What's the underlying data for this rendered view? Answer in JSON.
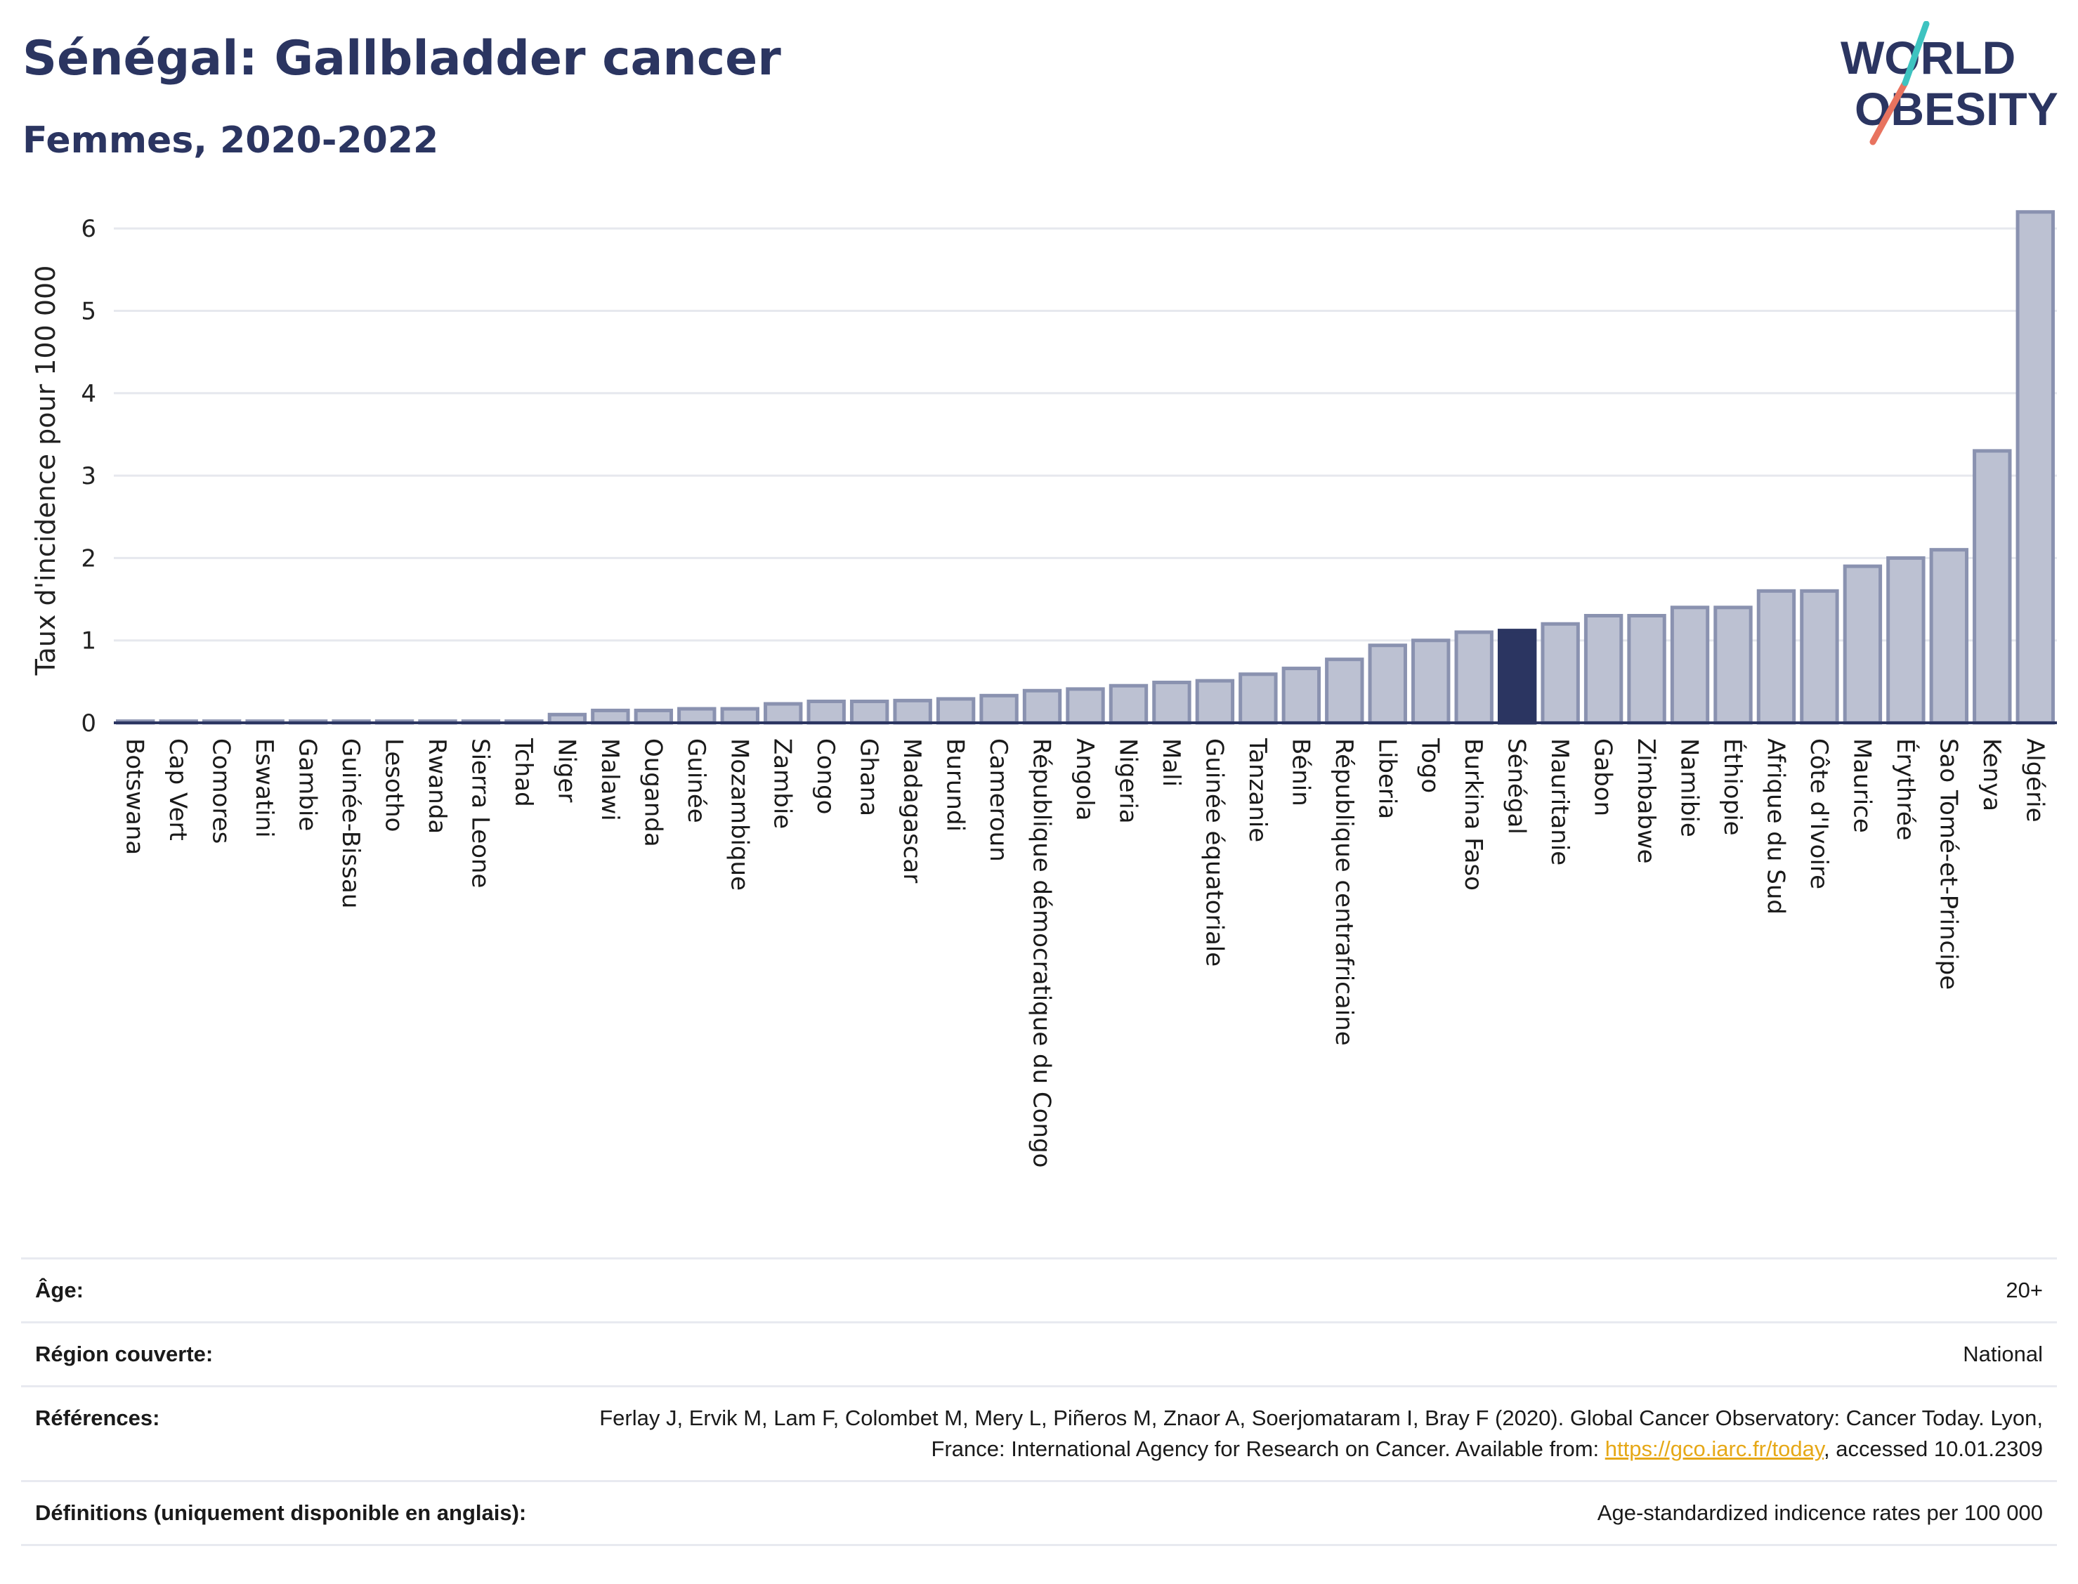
{
  "header": {
    "title": "Sénégal: Gallbladder cancer",
    "subtitle": "Femmes, 2020-2022"
  },
  "logo": {
    "line1": "WORLD",
    "line2": "OBESITY"
  },
  "colors": {
    "bar": "#bcc1d2",
    "bar_stroke": "#8a92b0",
    "highlight": "#2b3561",
    "text": "#2b3561",
    "grid": "#e6e8ee"
  },
  "chart_data": {
    "type": "bar",
    "ylabel": "Taux d'incidence pour 100 000",
    "ylim": [
      0,
      6.3
    ],
    "yticks": [
      0,
      1,
      2,
      3,
      4,
      5,
      6
    ],
    "grid": true,
    "highlight": "Sénégal",
    "categories": [
      "Botswana",
      "Cap Vert",
      "Comores",
      "Eswatini",
      "Gambie",
      "Guinée-Bissau",
      "Lesotho",
      "Rwanda",
      "Sierra Leone",
      "Tchad",
      "Niger",
      "Malawi",
      "Ouganda",
      "Guinée",
      "Mozambique",
      "Zambie",
      "Congo",
      "Ghana",
      "Madagascar",
      "Burundi",
      "Cameroun",
      "République démocratique du Congo",
      "Angola",
      "Nigeria",
      "Mali",
      "Guinée équatoriale",
      "Tanzanie",
      "Bénin",
      "République centrafricaine",
      "Liberia",
      "Togo",
      "Burkina Faso",
      "Sénégal",
      "Mauritanie",
      "Gabon",
      "Zimbabwe",
      "Namibie",
      "Éthiopie",
      "Afrique du Sud",
      "Côte d'Ivoire",
      "Maurice",
      "Érythrée",
      "Sao Tomé-et-Principe",
      "Kenya",
      "Algérie"
    ],
    "values": [
      0.02,
      0.02,
      0.02,
      0.02,
      0.02,
      0.02,
      0.02,
      0.02,
      0.02,
      0.02,
      0.1,
      0.15,
      0.15,
      0.17,
      0.17,
      0.23,
      0.26,
      0.26,
      0.27,
      0.29,
      0.33,
      0.39,
      0.41,
      0.45,
      0.49,
      0.51,
      0.59,
      0.66,
      0.77,
      0.94,
      1.0,
      1.1,
      1.12,
      1.2,
      1.3,
      1.3,
      1.4,
      1.4,
      1.6,
      1.6,
      1.9,
      2.0,
      2.1,
      3.3,
      6.2
    ]
  },
  "info": {
    "age_label": "Âge:",
    "age_value": "20+",
    "region_label": "Région couverte:",
    "region_value": "National",
    "refs_label": "Références:",
    "refs_text": "Ferlay J, Ervik M, Lam F, Colombet M, Mery L, Piñeros M, Znaor A, Soerjomataram I, Bray F (2020). Global Cancer Observatory: Cancer Today. Lyon, France: International Agency for Research on Cancer. Available from: ",
    "refs_link": "https://gco.iarc.fr/today",
    "refs_tail": ", accessed 10.01.2309",
    "defs_label": "Définitions (uniquement disponible en anglais):",
    "defs_value": "Age-standardized indicence rates per 100 000"
  }
}
